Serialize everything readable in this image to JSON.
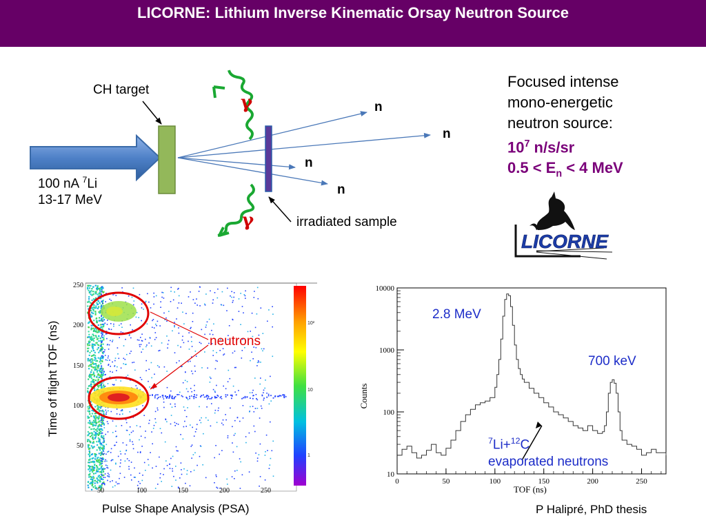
{
  "title": "LICORNE: Lithium Inverse Kinematic Orsay Neutron Source",
  "diagram": {
    "ch_target": "CH target",
    "beam_label_prefix": "100 nA ",
    "beam_label_sup": "7",
    "beam_label_element": "Li",
    "beam_energy": "13-17 MeV",
    "neutron": "n",
    "gamma": "γ",
    "sample": "irradiated sample"
  },
  "description": {
    "line1": "Focused intense",
    "line2": "mono-energetic",
    "line3": "neutron source:",
    "flux_base": "10",
    "flux_exp": "7",
    "flux_unit": " n/s/sr",
    "energy_pre": "0.5 < E",
    "energy_sub": "n",
    "energy_post": " < 4 MeV"
  },
  "logo": {
    "text": "LICORNE"
  },
  "psa_plot": {
    "ylabel": "Time of flight TOF (ns)",
    "xlabel": "Pulse Shape Analysis (PSA)",
    "annotation": "neutrons",
    "y_ticks": [
      "250",
      "200",
      "150",
      "100",
      "50"
    ],
    "x_ticks": [
      "50",
      "100",
      "150",
      "200",
      "250"
    ],
    "colorbar_ticks": [
      "10²",
      "10",
      "1"
    ],
    "colors": {
      "annotation": "#e00000"
    }
  },
  "chart_data": {
    "type": "line",
    "xlabel": "TOF (ns)",
    "ylabel": "Counts",
    "xlim": [
      0,
      275
    ],
    "ylim": [
      10,
      10000
    ],
    "yscale": "log",
    "x_ticks": [
      "0",
      "50",
      "100",
      "150",
      "200",
      "250"
    ],
    "y_ticks": [
      "10000",
      "1000",
      "100",
      "10"
    ],
    "annotations": {
      "peak1": "2.8 MeV",
      "peak2": "700 keV",
      "evap_sup1": "7",
      "evap_el1": "Li+",
      "evap_sup2": "12",
      "evap_el2": "C",
      "evap_line2": "evaporated neutrons"
    },
    "series": [
      {
        "x": [
          0,
          5,
          10,
          15,
          20,
          25,
          30,
          35,
          40,
          45,
          50,
          55,
          60,
          65,
          70,
          75,
          80,
          85,
          90,
          95,
          100,
          102,
          104,
          106,
          108,
          110,
          112,
          114,
          116,
          118,
          120,
          122,
          124,
          126,
          128,
          130,
          135,
          140,
          145,
          150,
          155,
          160,
          165,
          170,
          175,
          180,
          185,
          190,
          195,
          200,
          205,
          210,
          212,
          214,
          216,
          218,
          220,
          222,
          224,
          226,
          228,
          230,
          235,
          240,
          245,
          250,
          255,
          260,
          265,
          275
        ],
        "y": [
          20,
          25,
          28,
          22,
          18,
          20,
          24,
          30,
          22,
          20,
          26,
          35,
          50,
          70,
          90,
          110,
          130,
          140,
          150,
          170,
          250,
          400,
          700,
          1500,
          3500,
          6500,
          8000,
          7500,
          5000,
          2500,
          1200,
          700,
          500,
          400,
          340,
          300,
          240,
          200,
          170,
          140,
          120,
          100,
          90,
          80,
          70,
          60,
          55,
          50,
          60,
          50,
          45,
          48,
          60,
          100,
          200,
          300,
          330,
          290,
          200,
          100,
          50,
          35,
          30,
          28,
          25,
          20,
          22,
          25,
          22,
          20
        ]
      }
    ]
  },
  "credit": "P Halipré, PhD thesis"
}
